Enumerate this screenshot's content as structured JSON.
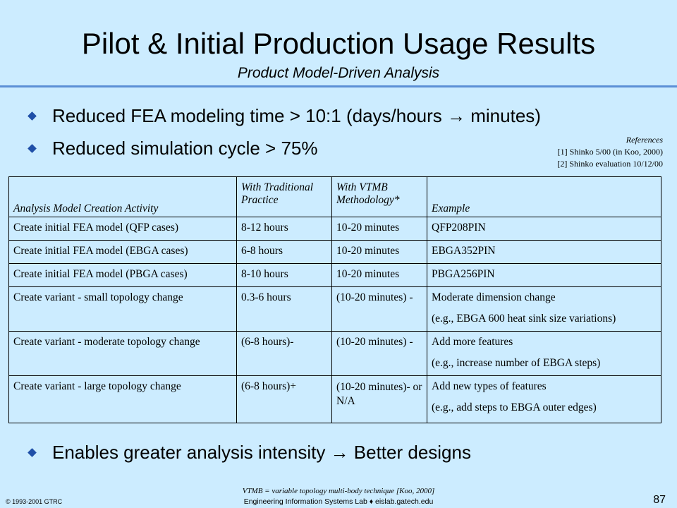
{
  "slide": {
    "title": "Pilot & Initial Production Usage Results",
    "subtitle": "Product Model-Driven Analysis",
    "bullets": [
      "Reduced FEA modeling time > 10:1 (days/hours → minutes)",
      "Reduced simulation cycle > 75%",
      "Enables greater analysis intensity → Better designs"
    ],
    "references": {
      "title": "References",
      "items": [
        "[1] Shinko 5/00 (in Koo, 2000)",
        "[2] Shinko evaluation 10/12/00"
      ]
    },
    "table": {
      "headers": [
        "Analysis Model Creation Activity",
        "With Traditional Practice",
        "With VTMB Methodology*",
        "Example"
      ],
      "rows": [
        {
          "activity": "Create initial FEA model (QFP cases)",
          "traditional": "8-12 hours",
          "vtmb": "10-20 minutes",
          "example": "QFP208PIN",
          "example2": ""
        },
        {
          "activity": "Create initial FEA model (EBGA cases)",
          "traditional": "6-8 hours",
          "vtmb": "10-20 minutes",
          "example": "EBGA352PIN",
          "example2": ""
        },
        {
          "activity": "Create initial FEA model (PBGA cases)",
          "traditional": "8-10 hours",
          "vtmb": "10-20 minutes",
          "example": "PBGA256PIN",
          "example2": ""
        },
        {
          "activity": "Create variant - small topology change",
          "traditional": "0.3-6 hours",
          "vtmb": "(10-20 minutes) -",
          "example": "Moderate dimension change",
          "example2": "(e.g., EBGA 600 heat sink size variations)"
        },
        {
          "activity": "Create variant - moderate topology change",
          "traditional": "(6-8 hours)-",
          "vtmb": "(10-20 minutes) -",
          "example": "Add more features",
          "example2": "(e.g., increase number of EBGA steps)"
        },
        {
          "activity": "Create variant - large topology change",
          "traditional": "(6-8 hours)+",
          "vtmb": "(10-20 minutes)- or N/A",
          "example": "Add new types of features",
          "example2": "(e.g., add steps to EBGA outer edges)"
        }
      ]
    },
    "footnote": "VTMB = variable topology multi-body technique [Koo, 2000]",
    "copyright": "© 1993-2001 GTRC",
    "lab": "Engineering Information Systems Lab ♦ eislab.gatech.edu",
    "page_number": "87",
    "colors": {
      "background": "#ccecff",
      "rule": "#5b8fd6",
      "bullet": "#1f4fa8"
    }
  }
}
